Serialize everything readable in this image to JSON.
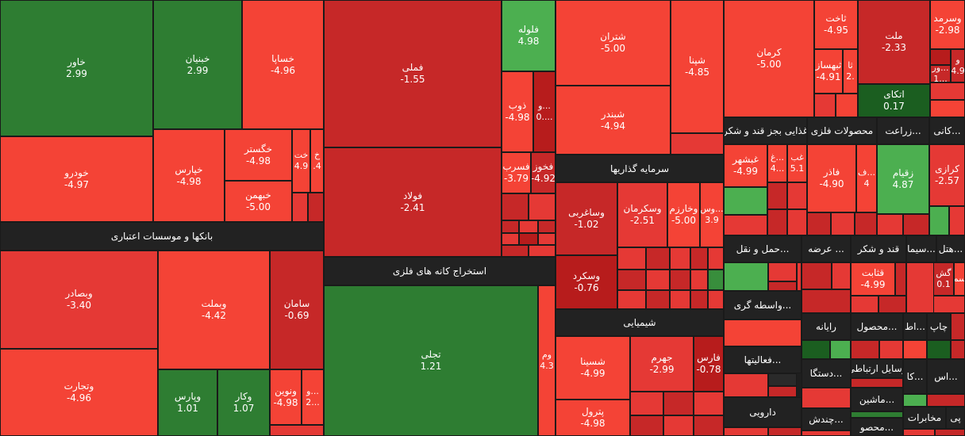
{
  "colors": {
    "down_strong": "#f44336",
    "down": "#e53935",
    "down_mid": "#c62828",
    "down_dark": "#b71c1c",
    "up_light": "#4caf50",
    "up": "#388e3c",
    "up_dark": "#2e7d32",
    "up_deep": "#1b5e20",
    "header": "#222222"
  },
  "sectors": {
    "banks": "بانکها و موسسات اعتباری",
    "metals": "استخراج کانه های فلزی",
    "investments": "سرمایه گذاریها",
    "chemicals": "شیمیایی",
    "food": "غذایی بجز قند و شکر",
    "metal_products": "محصولات فلزی",
    "agriculture": "زراعت...",
    "mining": "کانی...",
    "transport": "حمل و نقل...",
    "offer": "عرضه ...",
    "sugar": "قند و شکر",
    "cement": "سیما...",
    "hotel": "هتل...",
    "brokers": "واسطه گری...",
    "computer": "رایانه",
    "products": "محصول...",
    "et": "اط...",
    "print": "چاپ",
    "activities": "فعالیتها...",
    "devices": "دستگا...",
    "telecom": "وسایل ارتباطی",
    "ka": "کا...",
    "as": "اس...",
    "machinery": "ماشین...",
    "pharma": "دارویی",
    "multi": "چندش...",
    "telecom2": "مخابرات",
    "pi": "پی",
    "product2": "محصو..."
  },
  "tiles": {
    "khavar": {
      "name": "خاور",
      "change": "2.99"
    },
    "khbahman_ny": {
      "name": "خبنیان",
      "change": "2.99"
    },
    "khsapa": {
      "name": "خساپا",
      "change": "-4.96"
    },
    "khodro": {
      "name": "خودرو",
      "change": "-4.97"
    },
    "kharis": {
      "name": "خپارس",
      "change": "-4.98"
    },
    "khgostar": {
      "name": "خگستر",
      "change": "-4.98"
    },
    "khbahman": {
      "name": "خبهمن",
      "change": "-5.00"
    },
    "khat": {
      "name": "خت",
      "change": "4.9"
    },
    "kh": {
      "name": "خ",
      "change": ".4"
    },
    "vbsadr": {
      "name": "وبصادر",
      "change": "-3.40"
    },
    "vtejarat": {
      "name": "وتجارت",
      "change": "-4.96"
    },
    "vbmellat": {
      "name": "وبملت",
      "change": "-4.42"
    },
    "saman": {
      "name": "سامان",
      "change": "-0.69"
    },
    "vpars": {
      "name": "وپارس",
      "change": "1.01"
    },
    "vkar": {
      "name": "وکار",
      "change": "1.07"
    },
    "vnovin": {
      "name": "ونوین",
      "change": "-4.98"
    },
    "v2": {
      "name": "و...",
      "change": "2..."
    },
    "fameli": {
      "name": "فملی",
      "change": "-1.55"
    },
    "foolad": {
      "name": "فولاد",
      "change": "-2.41"
    },
    "folouleh": {
      "name": "فلوله",
      "change": "4.98"
    },
    "zob": {
      "name": "ذوب",
      "change": "-4.98"
    },
    "v0": {
      "name": "و...",
      "change": "0...."
    },
    "fesarb": {
      "name": "فسرب",
      "change": "-3.79"
    },
    "fekhooz": {
      "name": "فخوز",
      "change": "-4.92"
    },
    "tajala": {
      "name": "تجلی",
      "change": "1.21"
    },
    "vom": {
      "name": "وم",
      "change": "4.3"
    },
    "shatran": {
      "name": "شتران",
      "change": "-5.00"
    },
    "shabandar": {
      "name": "شبندر",
      "change": "-4.94"
    },
    "shapna": {
      "name": "شپنا",
      "change": "-4.85"
    },
    "vsaghrbi": {
      "name": "وساغربی",
      "change": "-1.02"
    },
    "vskerman": {
      "name": "وسکرمان",
      "change": "-2.51"
    },
    "vkharazm": {
      "name": "وخارزم",
      "change": "-5.00"
    },
    "vs39": {
      "name": "وس...",
      "change": "3.9"
    },
    "vskerd": {
      "name": "وسکرد",
      "change": "-0.76"
    },
    "shesina": {
      "name": "شسینا",
      "change": "-4.99"
    },
    "jahrom": {
      "name": "جهرم",
      "change": "-2.99"
    },
    "fars": {
      "name": "فارس",
      "change": "-0.78"
    },
    "petrol": {
      "name": "پترول",
      "change": "-4.98"
    },
    "kerman": {
      "name": "کرمان",
      "change": "-5.00"
    },
    "sakht": {
      "name": "ثاخت",
      "change": "-4.95"
    },
    "sabehsaz": {
      "name": "ثبهساز",
      "change": "-4.91"
    },
    "sa2": {
      "name": "ثا",
      "change": "2."
    },
    "melat": {
      "name": "ملت",
      "change": "-2.33"
    },
    "atka": {
      "name": "اتکای",
      "change": "0.17"
    },
    "vsarmad": {
      "name": "وسرمد",
      "change": "-2.98"
    },
    "var": {
      "name": "ور...",
      "change": "1..."
    },
    "v49": {
      "name": "و",
      "change": "4.9"
    },
    "ghshahr": {
      "name": "غبشهر",
      "change": "-4.99"
    },
    "gh4": {
      "name": "غ...",
      "change": "4..."
    },
    "ghab": {
      "name": "غب",
      "change": "5.1"
    },
    "fader": {
      "name": "فاذر",
      "change": "-4.90"
    },
    "f4": {
      "name": "ف...",
      "change": "4"
    },
    "zaqiam": {
      "name": "زقیام",
      "change": "4.87"
    },
    "kazari": {
      "name": "کرازی",
      "change": "-2.57"
    },
    "qnasat": {
      "name": "قثابت",
      "change": "-4.99"
    },
    "gesh": {
      "name": "گش",
      "change": "0.1"
    },
    "sm": {
      "name": "سم",
      "change": ""
    }
  }
}
